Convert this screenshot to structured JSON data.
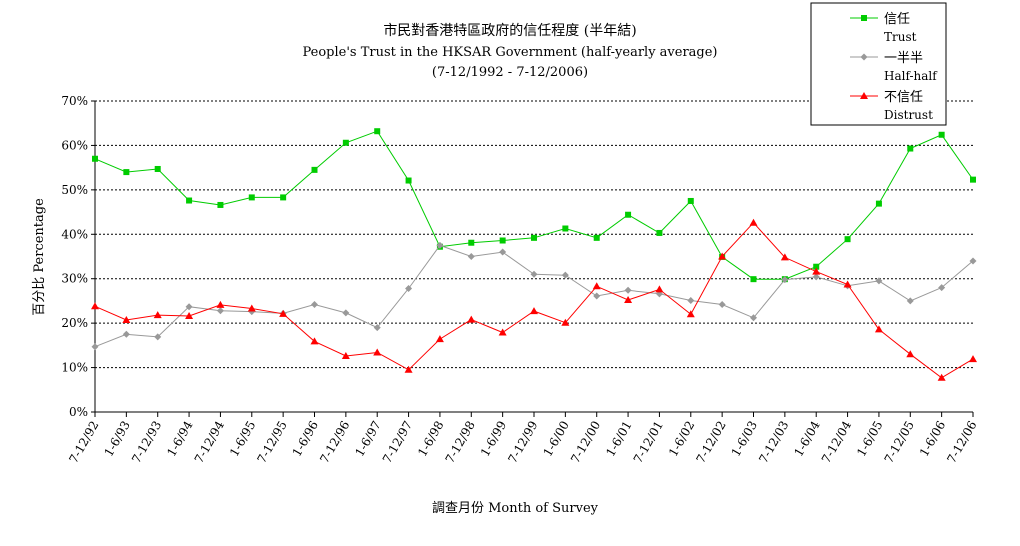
{
  "chart_data": {
    "type": "line",
    "title": "市民對香港特區政府的信任程度 (半年結)",
    "subtitle": "People's Trust in the HKSAR Government (half-yearly average)",
    "period": "(7-12/1992 - 7-12/2006)",
    "xlabel": "調查月份 Month of Survey",
    "ylabel": "百分比 Percentage",
    "ylim": [
      0,
      70
    ],
    "yticks": [
      "0%",
      "10%",
      "20%",
      "30%",
      "40%",
      "50%",
      "60%",
      "70%"
    ],
    "grid": "horizontal dashed",
    "legend_position": "top-right",
    "categories": [
      "7-12/92",
      "1-6/93",
      "7-12/93",
      "1-6/94",
      "7-12/94",
      "1-6/95",
      "7-12/95",
      "1-6/96",
      "7-12/96",
      "1-6/97",
      "7-12/97",
      "1-6/98",
      "7-12/98",
      "1-6/99",
      "7-12/99",
      "1-6/00",
      "7-12/00",
      "1-6/01",
      "7-12/01",
      "1-6/02",
      "7-12/02",
      "1-6/03",
      "7-12/03",
      "1-6/04",
      "7-12/04",
      "1-6/05",
      "7-12/05",
      "1-6/06",
      "7-12/06"
    ],
    "series": [
      {
        "name": "信任",
        "name_en": "Trust",
        "color": "#00cc00",
        "marker": "square",
        "values": [
          57.0,
          54.0,
          54.7,
          47.6,
          46.6,
          48.3,
          48.3,
          54.5,
          60.6,
          63.2,
          52.1,
          37.2,
          38.1,
          38.6,
          39.2,
          41.3,
          39.2,
          44.4,
          40.3,
          47.5,
          34.9,
          29.9,
          29.9,
          32.7,
          38.9,
          46.9,
          59.3,
          62.4,
          52.3
        ]
      },
      {
        "name": "一半半",
        "name_en": "Half-half",
        "color": "#999999",
        "marker": "diamond",
        "values": [
          14.7,
          17.5,
          16.9,
          23.7,
          22.8,
          22.6,
          22.2,
          24.2,
          22.3,
          19.0,
          27.8,
          37.5,
          35.0,
          36.0,
          31.0,
          30.8,
          26.1,
          27.4,
          26.6,
          25.1,
          24.2,
          21.2,
          29.8,
          30.4,
          28.4,
          29.5,
          25.0,
          28.0,
          34.0
        ]
      },
      {
        "name": "不信任",
        "name_en": "Distrust",
        "color": "#ff0000",
        "marker": "triangle",
        "values": [
          23.8,
          20.7,
          21.8,
          21.6,
          24.1,
          23.3,
          22.1,
          15.9,
          12.6,
          13.4,
          9.5,
          16.4,
          20.8,
          17.9,
          22.7,
          20.1,
          28.3,
          25.2,
          27.6,
          22.0,
          35.0,
          42.6,
          34.8,
          31.6,
          28.7,
          18.6,
          13.0,
          7.7,
          11.9
        ]
      }
    ]
  }
}
